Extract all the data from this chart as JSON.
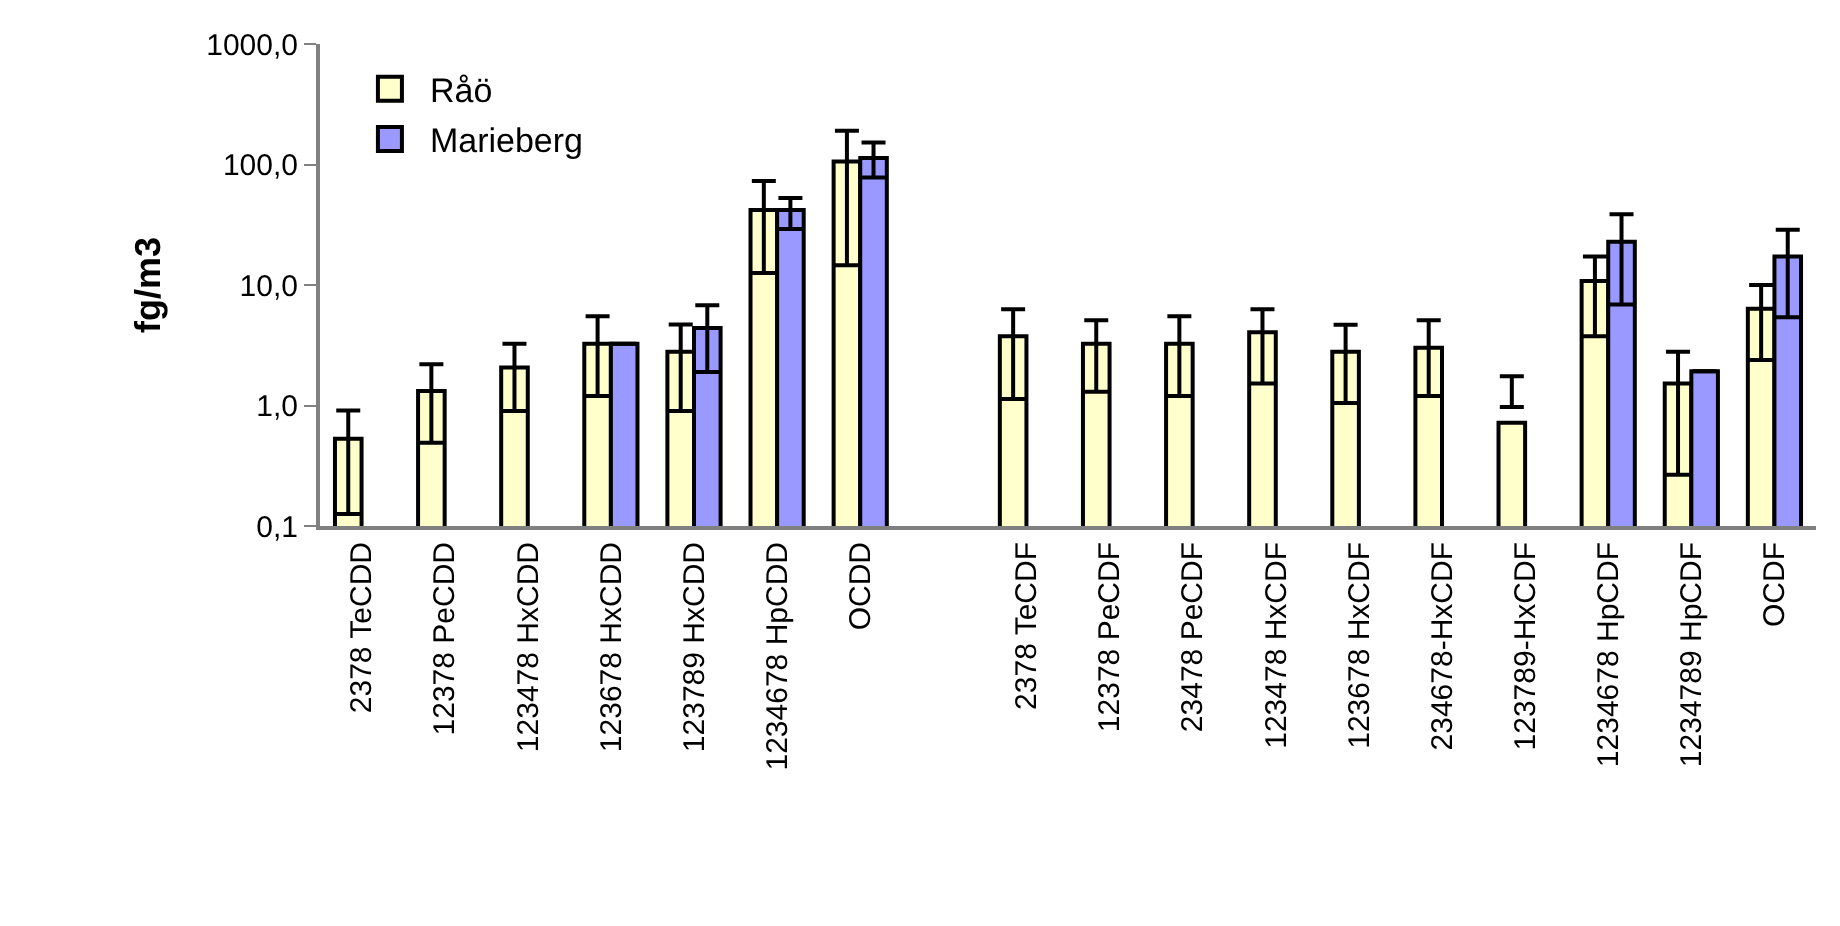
{
  "chart_data": {
    "type": "bar",
    "ylabel": "fg/m3",
    "categories": [
      "2378 TeCDD",
      "12378 PeCDD",
      "123478 HxCDD",
      "123678 HxCDD",
      "123789 HxCDD",
      "1234678 HpCDD",
      "OCDD",
      null,
      "2378 TeCDF",
      "12378 PeCDF",
      "23478 PeCDF",
      "123478 HxCDF",
      "123678 HxCDF",
      "234678-HxCDF",
      "123789-HxCDF",
      "1234678 HpCDF",
      "1234789 HpCDF",
      "OCDF"
    ],
    "series": [
      {
        "name": "Råö",
        "color": "#ffffcc",
        "values": [
          0.53,
          1.32,
          2.07,
          3.26,
          2.79,
          41.9,
          106,
          null,
          3.75,
          3.26,
          3.26,
          4.06,
          2.79,
          3.01,
          0.72,
          10.8,
          1.52,
          6.36
        ],
        "errors": [
          [
            0.126,
            0.91
          ],
          [
            0.49,
            2.2
          ],
          [
            0.9,
            3.26
          ],
          [
            1.2,
            5.5
          ],
          [
            0.9,
            4.7
          ],
          [
            12.6,
            72.8
          ],
          [
            14.6,
            191
          ],
          null,
          [
            1.13,
            6.3
          ],
          [
            1.3,
            5.1
          ],
          [
            1.2,
            5.5
          ],
          [
            1.52,
            6.3
          ],
          [
            1.05,
            4.67
          ],
          [
            1.2,
            5.1
          ],
          [
            0.97,
            1.75
          ],
          [
            3.75,
            17.2
          ],
          [
            0.266,
            2.79
          ],
          [
            2.39,
            10.0
          ]
        ]
      },
      {
        "name": "Marieberg",
        "color": "#9999ff",
        "values": [
          null,
          null,
          null,
          3.26,
          4.4,
          41.9,
          113,
          null,
          null,
          null,
          null,
          null,
          null,
          null,
          null,
          22.8,
          1.92,
          17.2
        ],
        "errors": [
          null,
          null,
          null,
          null,
          [
            1.9,
            6.8
          ],
          [
            29.2,
            52.8
          ],
          [
            78,
            152
          ],
          null,
          null,
          null,
          null,
          null,
          null,
          null,
          null,
          [
            6.9,
            38.7
          ],
          null,
          [
            5.4,
            28.8
          ]
        ]
      }
    ],
    "log": "y",
    "ylim": [
      0.1,
      1000
    ],
    "yticks": [
      {
        "value": 0.1,
        "label": "0,1"
      },
      {
        "value": 1,
        "label": "1,0"
      },
      {
        "value": 10,
        "label": "10,0"
      },
      {
        "value": 100,
        "label": "100,0"
      },
      {
        "value": 1000,
        "label": "1000,0"
      }
    ],
    "legend": "top left"
  }
}
